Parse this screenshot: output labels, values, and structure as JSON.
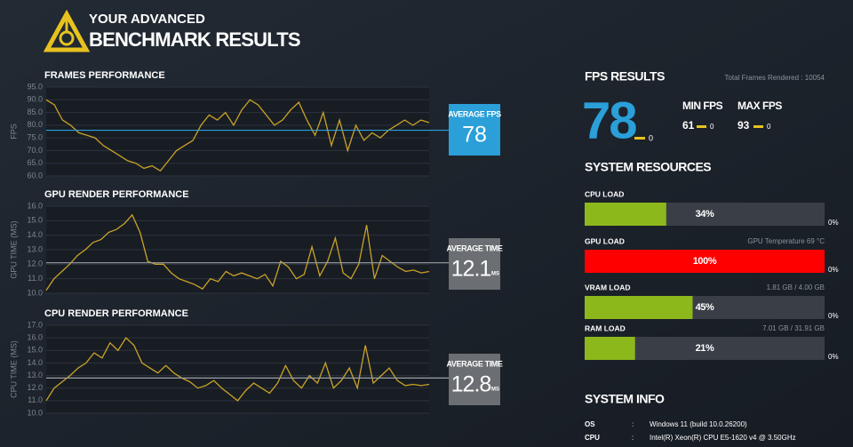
{
  "header": {
    "line1": "YOUR ADVANCED",
    "line2": "BENCHMARK RESULTS"
  },
  "chart_data": [
    {
      "type": "line",
      "title": "FRAMES PERFORMANCE",
      "y_label": "FPS",
      "color": "#c9a227",
      "ylim": [
        60,
        95
      ],
      "yticks": [
        {
          "value": 60,
          "label": "60.0"
        },
        {
          "value": 65,
          "label": "65.0"
        },
        {
          "value": 70,
          "label": "70.0"
        },
        {
          "value": 75,
          "label": "75.0"
        },
        {
          "value": 80,
          "label": "80.0"
        },
        {
          "value": 85,
          "label": "85.0"
        },
        {
          "value": 90,
          "label": "90.0"
        },
        {
          "value": 95,
          "label": "95.0"
        }
      ],
      "grid": true,
      "values": [
        90,
        88,
        82,
        80,
        77,
        76,
        75,
        72,
        70,
        68,
        66,
        65,
        63,
        64,
        62,
        66,
        70,
        72,
        74,
        80,
        84,
        82,
        85,
        80,
        86,
        90,
        88,
        84,
        80,
        82,
        86,
        89,
        82,
        76,
        85,
        72,
        82,
        70,
        80,
        74,
        77,
        75,
        78,
        80,
        82,
        80,
        82,
        81
      ],
      "average": {
        "label": "AVERAGE FPS",
        "value": 78,
        "color": "#2a9fd8"
      }
    },
    {
      "type": "line",
      "title": "GPU RENDER PERFORMANCE",
      "y_label": "GPU TIME (MS)",
      "color": "#c9a227",
      "ylim": [
        10,
        16
      ],
      "yticks": [
        {
          "value": 10,
          "label": "10.0"
        },
        {
          "value": 11,
          "label": "11.0"
        },
        {
          "value": 12,
          "label": "12.0"
        },
        {
          "value": 13,
          "label": "13.0"
        },
        {
          "value": 14,
          "label": "14.0"
        },
        {
          "value": 15,
          "label": "15.0"
        },
        {
          "value": 16,
          "label": "16.0"
        }
      ],
      "grid": true,
      "values": [
        10.2,
        11,
        11.5,
        12,
        12.6,
        13,
        13.5,
        13.7,
        14.2,
        14.4,
        14.8,
        15.4,
        14.2,
        12.2,
        12,
        12,
        11.4,
        11,
        10.8,
        10.6,
        10.3,
        11,
        10.8,
        11.5,
        11.2,
        11.4,
        11.2,
        11,
        11.3,
        10.5,
        12.2,
        11.8,
        11,
        11.3,
        13.2,
        11.2,
        12.2,
        13.8,
        11.4,
        11,
        12,
        14.7,
        11,
        12.6,
        12.2,
        11.8,
        11.5,
        11.6,
        11.4,
        11.5
      ],
      "average": {
        "label": "AVERAGE TIME",
        "value": 12.1,
        "unit": "MS",
        "color": "#6b6e72"
      }
    },
    {
      "type": "line",
      "title": "CPU RENDER PERFORMANCE",
      "y_label": "CPU TIME (MS)",
      "color": "#c9a227",
      "ylim": [
        10,
        17
      ],
      "yticks": [
        {
          "value": 10,
          "label": "10.0"
        },
        {
          "value": 11,
          "label": "11.0"
        },
        {
          "value": 12,
          "label": "12.0"
        },
        {
          "value": 13,
          "label": "13.0"
        },
        {
          "value": 14,
          "label": "14.0"
        },
        {
          "value": 15,
          "label": "15.0"
        },
        {
          "value": 16,
          "label": "16.0"
        },
        {
          "value": 17,
          "label": "17.0"
        }
      ],
      "grid": true,
      "values": [
        11,
        12,
        12.5,
        13,
        13.6,
        14,
        14.8,
        14.4,
        15.6,
        15,
        16,
        15.4,
        14,
        13.6,
        13.2,
        13.8,
        13.2,
        12.8,
        12.5,
        12,
        12.2,
        12.6,
        12,
        11.5,
        11,
        11.8,
        12.4,
        12,
        11.6,
        12.4,
        13.8,
        12.6,
        12,
        13,
        12.4,
        14,
        12,
        12.6,
        13.6,
        12,
        15.4,
        12.4,
        13,
        13.6,
        12.6,
        12.2,
        12.3,
        12.2,
        12.3
      ],
      "average": {
        "label": "AVERAGE TIME",
        "value": 12.8,
        "unit": "MS",
        "color": "#6b6e72"
      }
    }
  ],
  "fps_results": {
    "title": "FPS RESULTS",
    "total_frames": "Total Frames Rendered : 10054",
    "average": 78,
    "average_delta": 0,
    "min": {
      "label": "MIN FPS",
      "value": 61,
      "delta": 0
    },
    "max": {
      "label": "MAX FPS",
      "value": 93,
      "delta": 0
    }
  },
  "system_resources": {
    "title": "SYSTEM RESOURCES",
    "items": [
      {
        "name": "CPU LOAD",
        "value": 34,
        "value_label": "34%",
        "color": "#8cb81c",
        "side_label": "0%"
      },
      {
        "name": "GPU LOAD",
        "value": 100,
        "value_label": "100%",
        "color": "#ff0000",
        "detail": "GPU Temperature 69 °C",
        "side_label": "0%"
      },
      {
        "name": "VRAM LOAD",
        "value": 45,
        "value_label": "45%",
        "color": "#8cb81c",
        "detail": "1.81 GB / 4.00 GB",
        "side_label": "0%"
      },
      {
        "name": "RAM LOAD",
        "value": 21,
        "value_label": "21%",
        "color": "#8cb81c",
        "detail": "7.01 GB / 31.91 GB",
        "side_label": "0%"
      }
    ]
  },
  "system_info": {
    "title": "SYSTEM INFO",
    "separator": ":",
    "rows": [
      {
        "label": "OS",
        "value": "Windows 11 (build 10.0.26200)"
      },
      {
        "label": "CPU",
        "value": "Intel(R) Xeon(R) CPU E5-1620 v4 @ 3.50GHz"
      }
    ]
  }
}
